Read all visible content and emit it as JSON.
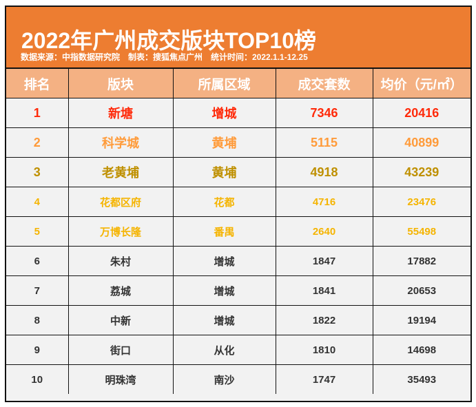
{
  "header": {
    "title": "2022年广州成交版块TOP10榜",
    "subtitle": "数据来源：中指数据研究院　制表：搜狐焦点广州　统计时间：2022.1.1-12.25"
  },
  "columns": [
    "排名",
    "版块",
    "所属区域",
    "成交套数",
    "均价（元/㎡）"
  ],
  "rows": [
    {
      "rank": "1",
      "block": "新塘",
      "district": "增城",
      "units": "7346",
      "price": "20416",
      "color": "#FF2A0A"
    },
    {
      "rank": "2",
      "block": "科学城",
      "district": "黄埔",
      "units": "5115",
      "price": "40899",
      "color": "#FF9B3A"
    },
    {
      "rank": "3",
      "block": "老黄埔",
      "district": "黄埔",
      "units": "4918",
      "price": "43239",
      "color": "#BF9000"
    },
    {
      "rank": "4",
      "block": "花都区府",
      "district": "花都",
      "units": "4716",
      "price": "23476",
      "color": "#F5B400"
    },
    {
      "rank": "5",
      "block": "万博长隆",
      "district": "番禺",
      "units": "2640",
      "price": "55498",
      "color": "#F5B400"
    },
    {
      "rank": "6",
      "block": "朱村",
      "district": "增城",
      "units": "1847",
      "price": "17882",
      "color": "#333333"
    },
    {
      "rank": "7",
      "block": "荔城",
      "district": "增城",
      "units": "1841",
      "price": "20653",
      "color": "#333333"
    },
    {
      "rank": "8",
      "block": "中新",
      "district": "增城",
      "units": "1822",
      "price": "19194",
      "color": "#333333"
    },
    {
      "rank": "9",
      "block": "街口",
      "district": "从化",
      "units": "1810",
      "price": "14698",
      "color": "#333333"
    },
    {
      "rank": "10",
      "block": "明珠湾",
      "district": "南沙",
      "units": "1747",
      "price": "35493",
      "color": "#333333"
    }
  ]
}
